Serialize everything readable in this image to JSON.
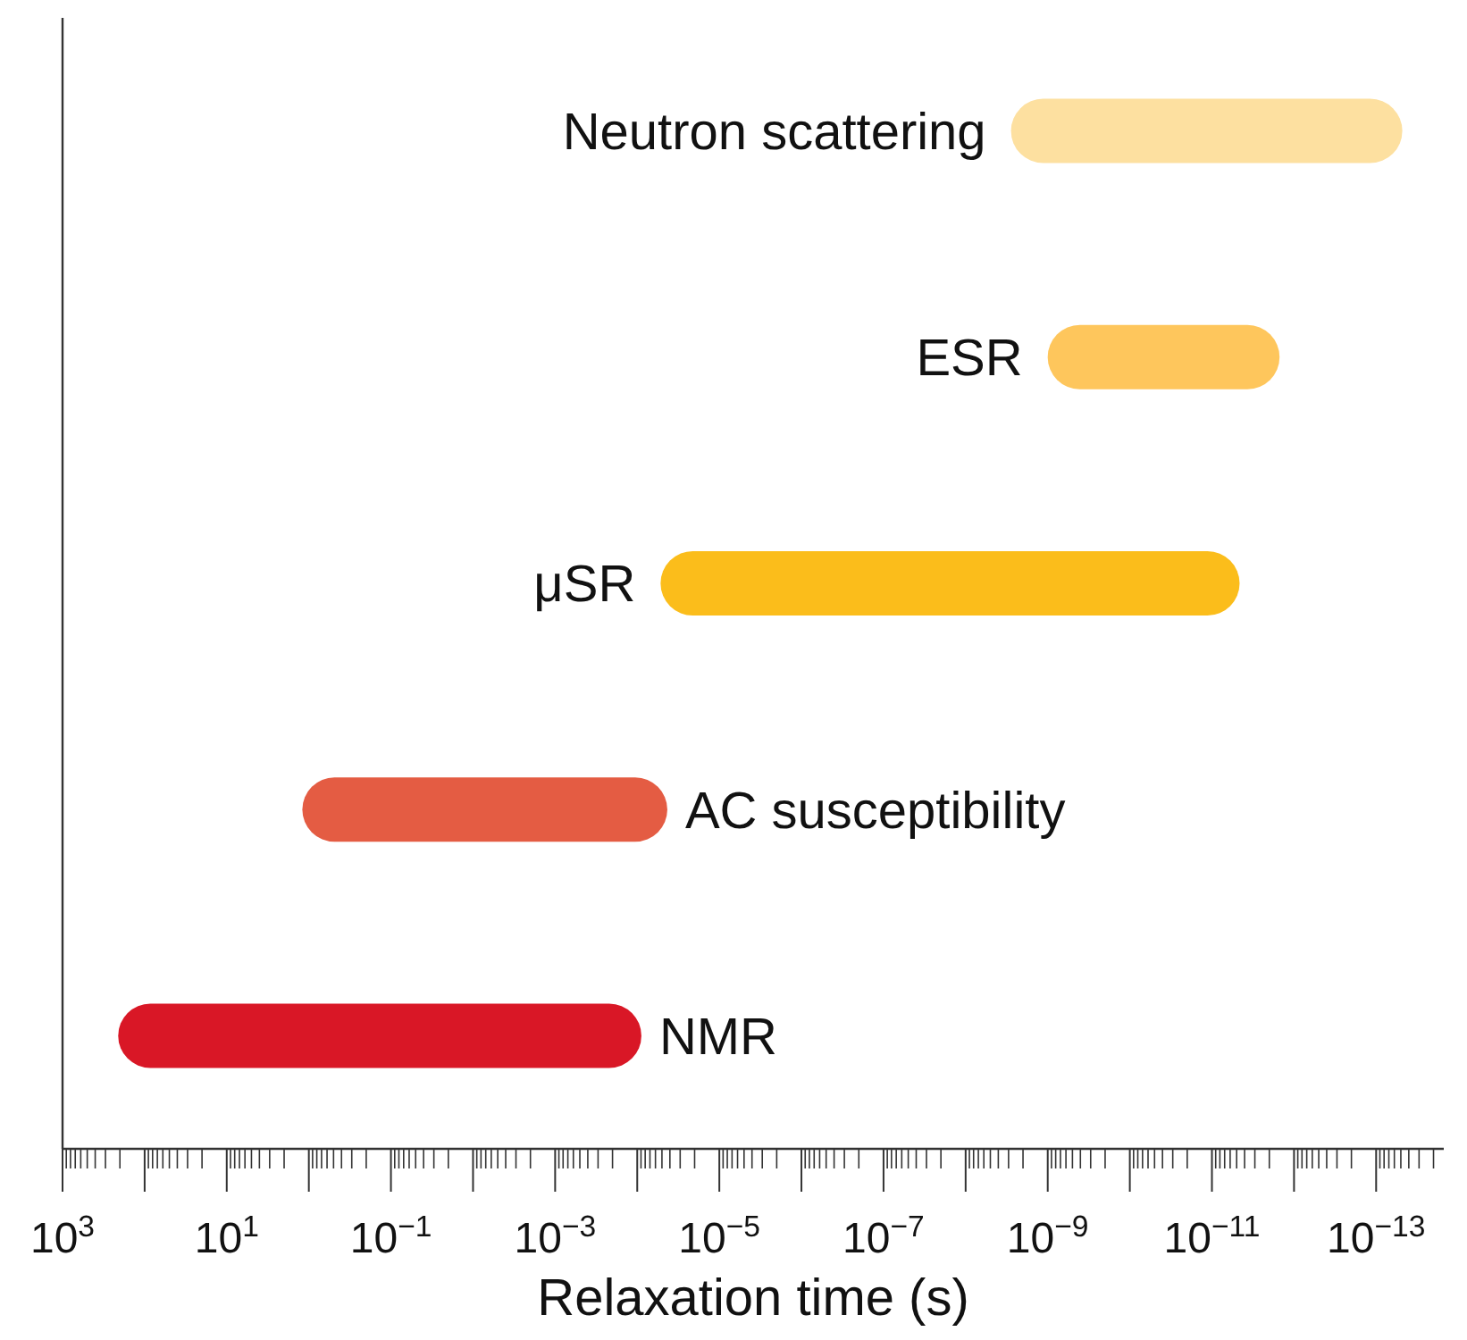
{
  "chart_data": {
    "type": "bar",
    "orientation": "horizontal",
    "log": "x",
    "xlabel": "Relaxation time (s)",
    "categories": [
      "Neutron scattering",
      "ESR",
      "μSR",
      "AC susceptibility",
      "NMR"
    ],
    "base": [
      4.8e-14,
      1.5e-12,
      4.6e-12,
      4.3e-05,
      8.9e-05
    ],
    "values": [
      2.8e-09,
      1e-09,
      5.2e-05,
      1.2,
      210
    ],
    "colors": [
      "#fde0a0",
      "#fec65c",
      "#fbbd1b",
      "#e45c43",
      "#d91726"
    ],
    "xlim": [
      1000,
      1.5e-14
    ],
    "xticks": [
      {
        "value": 1000,
        "label": "10$^{3}$"
      },
      {
        "value": 100,
        "label": null
      },
      {
        "value": 10,
        "label": "10$^{1}$"
      },
      {
        "value": 1,
        "label": null
      },
      {
        "value": 0.1,
        "label": "10$^{−1}$"
      },
      {
        "value": 0.01,
        "label": null
      },
      {
        "value": 0.001,
        "label": "10$^{−3}$"
      },
      {
        "value": 0.0001,
        "label": null
      },
      {
        "value": 1e-05,
        "label": "10$^{−5}$"
      },
      {
        "value": 1e-06,
        "label": null
      },
      {
        "value": 1e-07,
        "label": "10$^{−7}$"
      },
      {
        "value": 1e-08,
        "label": null
      },
      {
        "value": 1e-09,
        "label": "10$^{−9}$"
      },
      {
        "value": 1e-10,
        "label": null
      },
      {
        "value": 1e-11,
        "label": "10$^{−11}$"
      },
      {
        "value": 1e-12,
        "label": null
      },
      {
        "value": 1e-13,
        "label": "10$^{−13}$"
      }
    ],
    "grid": false
  }
}
